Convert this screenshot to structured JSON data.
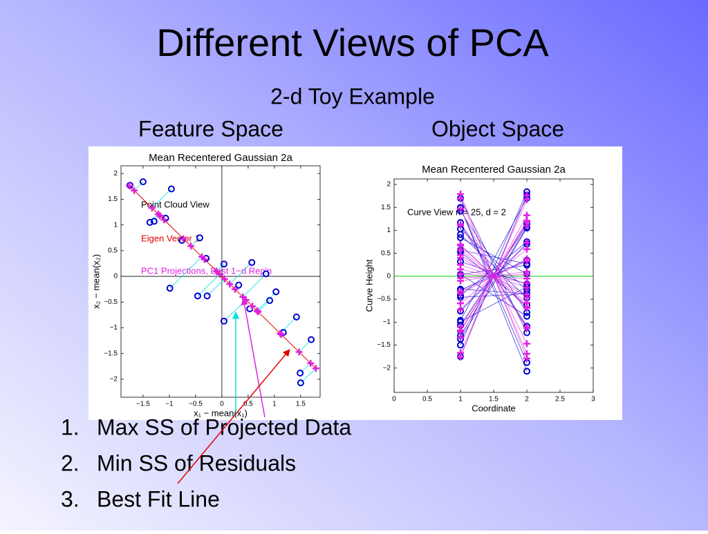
{
  "slide": {
    "title": "Different Views of PCA",
    "subtitle": "2-d Toy Example",
    "headers": [
      "Feature Space",
      "Object Space"
    ],
    "list": [
      {
        "n": "1.",
        "text": "Max SS of Projected Data"
      },
      {
        "n": "2.",
        "text": "Min SS of Residuals"
      },
      {
        "n": "3.",
        "text": "Best Fit Line"
      }
    ]
  },
  "chart_data": [
    {
      "type": "scatter",
      "title": "Mean Recentered Gaussian 2a",
      "xlabel": "x₁ − mean(x₁)",
      "ylabel": "x₂ − mean(x₂)",
      "annotations": [
        {
          "text": "Point Cloud View",
          "color": "#000000"
        },
        {
          "text": "Eigen Vector 1",
          "color": "#e00000"
        },
        {
          "text": "PC1 Projections, Best 1−d Rep'n",
          "color": "#e020e0"
        }
      ],
      "xlim": [
        -1.92,
        1.87
      ],
      "ylim": [
        -2.35,
        2.15
      ],
      "xticks": [
        {
          "value": -1.5,
          "label": "−1.5"
        },
        {
          "value": -1,
          "label": "−1"
        },
        {
          "value": -0.5,
          "label": "−0.5"
        },
        0,
        0.5,
        1,
        1.5
      ],
      "yticks": [
        {
          "value": -2,
          "label": "−2"
        },
        {
          "value": -1.5,
          "label": "−1.5"
        },
        {
          "value": -1,
          "label": "−1"
        },
        {
          "value": -0.5,
          "label": "−0.5"
        },
        0,
        0.5,
        1,
        1.5,
        2
      ],
      "line_color": "#e00000",
      "residual_color": "#00e0e0",
      "points": {
        "color": "#0000d0",
        "x": [
          -1.75,
          -1.5,
          -0.96,
          -1.37,
          -1.29,
          -1.07,
          -0.76,
          -0.42,
          -0.3,
          -0.99,
          -0.46,
          -0.28,
          0.04,
          0.04,
          0.57,
          0.32,
          0.84,
          1.03,
          0.91,
          0.53,
          1.17,
          1.42,
          1.7,
          1.49,
          1.5
        ],
        "y": [
          1.77,
          1.84,
          1.7,
          1.05,
          1.07,
          1.13,
          0.7,
          0.75,
          0.35,
          -0.23,
          -0.38,
          -0.38,
          0.24,
          -0.87,
          0.27,
          -0.17,
          0.05,
          -0.3,
          -0.47,
          -0.63,
          -1.09,
          -0.79,
          -1.23,
          -1.88,
          -2.07
        ]
      },
      "projections": {
        "color": "#e020e0",
        "x": [
          -1.76,
          -1.67,
          -1.33,
          -1.21,
          -1.18,
          -1.1,
          -0.73,
          -0.59,
          -0.33,
          -0.38,
          -0.04,
          0.05,
          -0.1,
          0.46,
          0.15,
          0.25,
          0.4,
          0.67,
          0.69,
          0.58,
          1.13,
          1.11,
          1.47,
          1.69,
          1.79
        ],
        "y": [
          1.76,
          1.67,
          1.33,
          1.21,
          1.18,
          1.1,
          0.73,
          0.59,
          0.33,
          0.38,
          0.04,
          -0.05,
          0.1,
          -0.46,
          -0.15,
          -0.25,
          -0.4,
          -0.67,
          -0.69,
          -0.58,
          -1.13,
          -1.11,
          -1.47,
          -1.69,
          -1.79
        ]
      }
    },
    {
      "type": "parallel",
      "title": "Mean Recentered Gaussian 2a",
      "xlabel": "Coordinate",
      "ylabel": "Curve Height",
      "annotations": [
        {
          "text": "Curve View n = 25, d = 2",
          "color": "#000000"
        }
      ],
      "xlim": [
        0,
        3
      ],
      "ylim": [
        -2.53,
        2.12
      ],
      "xticks": [
        0,
        0.5,
        1,
        1.5,
        2,
        2.5,
        3
      ],
      "yticks": [
        {
          "value": -2,
          "label": "−2"
        },
        {
          "value": -1.5,
          "label": "−1.5"
        },
        {
          "value": -1,
          "label": "−1"
        },
        {
          "value": -0.5,
          "label": "−0.5"
        },
        0,
        0.5,
        1,
        1.5,
        2
      ],
      "zero_line_color": "#00d000",
      "coordinates": [
        1,
        2
      ],
      "curves": {
        "color": "#0000d0",
        "at1": [
          -1.75,
          -1.5,
          -0.96,
          -1.37,
          -1.29,
          -1.07,
          -0.76,
          -0.42,
          -0.3,
          -0.99,
          -0.46,
          -0.28,
          0.04,
          0.04,
          0.57,
          0.32,
          0.84,
          1.03,
          0.91,
          0.53,
          1.17,
          1.42,
          1.7,
          1.49,
          1.5
        ],
        "at2": [
          1.77,
          1.84,
          1.7,
          1.05,
          1.07,
          1.13,
          0.7,
          0.75,
          0.35,
          -0.23,
          -0.38,
          -0.38,
          0.24,
          -0.87,
          0.27,
          -0.17,
          0.05,
          -0.3,
          -0.47,
          -0.63,
          -1.09,
          -0.79,
          -1.23,
          -1.88,
          -2.07
        ]
      },
      "projected_curves": {
        "color": "#e020e0",
        "at1": [
          -1.76,
          -1.67,
          -1.33,
          -1.21,
          -1.18,
          -1.1,
          -0.73,
          -0.59,
          -0.33,
          -0.38,
          -0.04,
          0.05,
          -0.1,
          0.46,
          0.15,
          0.25,
          0.4,
          0.67,
          0.69,
          0.58,
          1.13,
          1.11,
          1.47,
          1.69,
          1.79
        ],
        "at2": [
          1.76,
          1.67,
          1.33,
          1.21,
          1.18,
          1.1,
          0.73,
          0.59,
          0.33,
          0.38,
          0.04,
          -0.05,
          0.1,
          -0.46,
          -0.15,
          -0.25,
          -0.4,
          -0.67,
          -0.69,
          -0.58,
          -1.13,
          -1.11,
          -1.47,
          -1.69,
          -1.79
        ]
      }
    }
  ]
}
